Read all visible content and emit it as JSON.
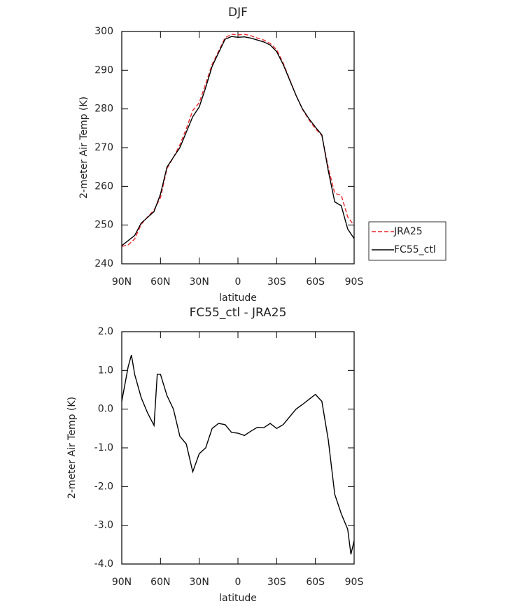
{
  "chart_data": [
    {
      "type": "line",
      "title": "DJF",
      "ylabel": "2-meter Air Temp (K)",
      "xlabel": "latitude",
      "x": [
        90,
        85,
        80,
        75,
        70,
        65,
        60,
        55,
        50,
        45,
        40,
        35,
        30,
        25,
        20,
        15,
        10,
        5,
        0,
        -5,
        -10,
        -15,
        -20,
        -25,
        -30,
        -35,
        -40,
        -45,
        -50,
        -55,
        -60,
        -65,
        -70,
        -75,
        -80,
        -85,
        -90
      ],
      "xlim": [
        90,
        -90
      ],
      "xticks": [
        {
          "value": 90,
          "label": "90N"
        },
        {
          "value": 60,
          "label": "60N"
        },
        {
          "value": 30,
          "label": "30N"
        },
        0,
        {
          "value": -30,
          "label": "30S"
        },
        {
          "value": -60,
          "label": "60S"
        },
        {
          "value": -90,
          "label": "90S"
        }
      ],
      "ylim": [
        240,
        300
      ],
      "yticks": [
        240,
        250,
        260,
        270,
        280,
        290,
        300
      ],
      "legend": "right",
      "series": [
        {
          "name": "JRA25",
          "color": "#e8262a",
          "linestyle": "dashed",
          "values": [
            244.5,
            244.9,
            246.4,
            250.2,
            252.1,
            253.9,
            257.1,
            264.6,
            267.5,
            270.7,
            274.9,
            279.6,
            281.6,
            286.5,
            291.5,
            294.9,
            298.4,
            299.3,
            299.1,
            299.3,
            298.9,
            298.3,
            297.8,
            296.9,
            295.3,
            291.9,
            287.7,
            283.5,
            279.9,
            277.2,
            274.9,
            273.1,
            264.8,
            258.2,
            257.7,
            252.1,
            249.9
          ]
        },
        {
          "name": "FC55_ctl",
          "color": "#000000",
          "linestyle": "solid",
          "values": [
            244.7,
            246,
            247.3,
            250.5,
            252,
            253.5,
            258,
            265,
            267.5,
            270,
            274,
            278,
            280.5,
            285.5,
            291,
            294.5,
            298,
            298.7,
            298.5,
            298.6,
            298.3,
            297.8,
            297.3,
            296.5,
            294.8,
            291.5,
            287.5,
            283.5,
            280,
            277.5,
            275.3,
            273.3,
            264,
            256,
            255,
            249,
            246.5
          ]
        }
      ]
    },
    {
      "type": "line",
      "title": "FC55_ctl - JRA25",
      "ylabel": "2-meter Air Temp (K)",
      "xlabel": "latitude",
      "x": [
        90,
        85,
        82.5,
        80,
        75,
        70,
        65,
        62.5,
        60,
        55,
        50,
        45,
        40,
        35,
        30,
        25,
        20,
        15,
        10,
        5,
        0,
        -5,
        -10,
        -15,
        -20,
        -25,
        -30,
        -35,
        -40,
        -45,
        -50,
        -55,
        -60,
        -65,
        -70,
        -75,
        -80,
        -85,
        -87.5,
        -90
      ],
      "xlim": [
        90,
        -90
      ],
      "xticks": [
        {
          "value": 90,
          "label": "90N"
        },
        {
          "value": 60,
          "label": "60N"
        },
        {
          "value": 30,
          "label": "30N"
        },
        0,
        {
          "value": -30,
          "label": "30S"
        },
        {
          "value": -60,
          "label": "60S"
        },
        {
          "value": -90,
          "label": "90S"
        }
      ],
      "ylim": [
        -4,
        2
      ],
      "yticks": [
        {
          "value": -4,
          "label": "-4.0"
        },
        {
          "value": -3,
          "label": "-3.0"
        },
        {
          "value": -2,
          "label": "-2.0"
        },
        {
          "value": -1,
          "label": "-1.0"
        },
        {
          "value": 0,
          "label": "0.0"
        },
        {
          "value": 1,
          "label": "1.0"
        },
        {
          "value": 2,
          "label": "2.0"
        }
      ],
      "series": [
        {
          "color": "#000000",
          "linestyle": "solid",
          "values": [
            0.2,
            1.1,
            1.4,
            0.9,
            0.3,
            -0.1,
            -0.42,
            0.9,
            0.9,
            0.35,
            0.0,
            -0.7,
            -0.9,
            -1.62,
            -1.15,
            -1.0,
            -0.5,
            -0.37,
            -0.4,
            -0.6,
            -0.62,
            -0.68,
            -0.57,
            -0.47,
            -0.48,
            -0.37,
            -0.5,
            -0.4,
            -0.2,
            0.0,
            0.12,
            0.25,
            0.38,
            0.2,
            -0.8,
            -2.2,
            -2.7,
            -3.1,
            -3.75,
            -3.4
          ]
        }
      ]
    }
  ]
}
